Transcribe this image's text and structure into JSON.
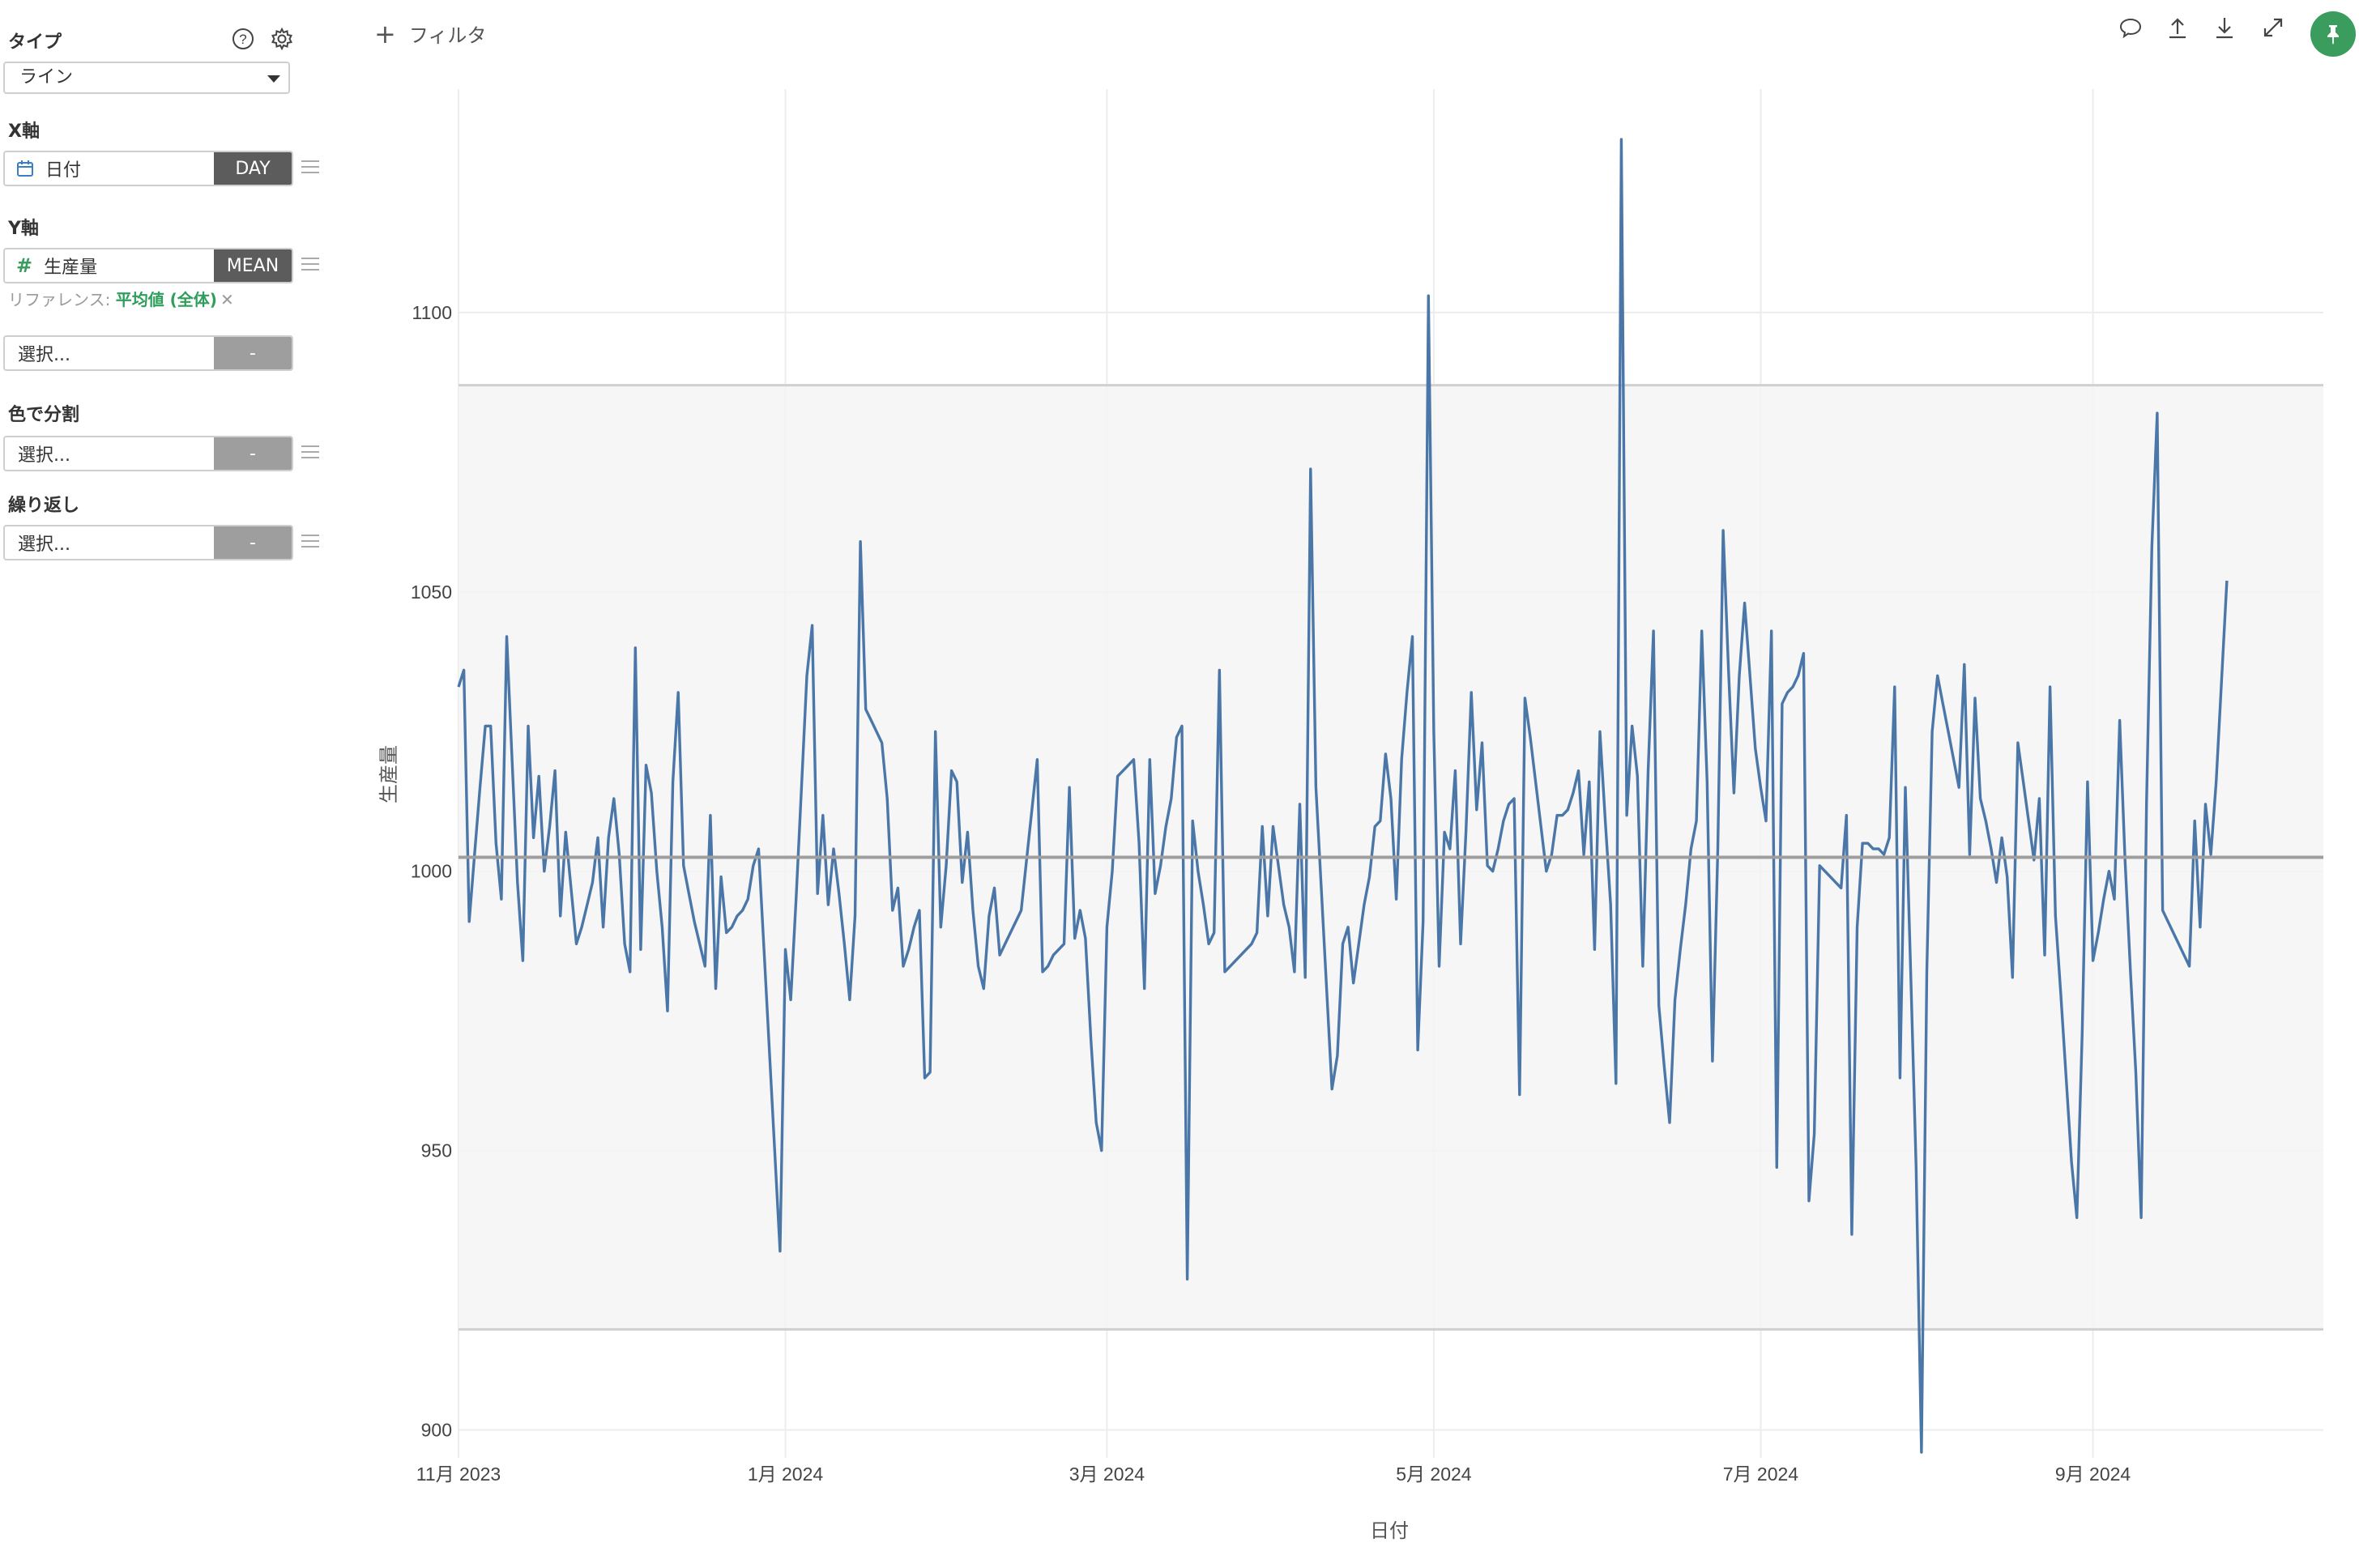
{
  "sidebar": {
    "type_label": "タイプ",
    "type_value": "ライン",
    "x_label": "X軸",
    "x_field": "日付",
    "x_agg": "DAY",
    "y_label": "Y軸",
    "y_field": "生産量",
    "y_agg": "MEAN",
    "ref_prefix": "リファレンス: ",
    "ref_value": "平均値 (全体)",
    "ref_remove": "✕",
    "extra_select": "選択...",
    "extra_agg": "-",
    "color_label": "色で分割",
    "color_select": "選択...",
    "color_agg": "-",
    "repeat_label": "繰り返し",
    "repeat_select": "選択...",
    "repeat_agg": "-"
  },
  "topbar": {
    "filter_plus": "+",
    "filter_label": "フィルタ",
    "icons": [
      "comment-icon",
      "upload-icon",
      "download-icon",
      "expand-icon",
      "pin-icon"
    ]
  },
  "colors": {
    "line": "#4a76a8",
    "band": "#f4f4f4",
    "band_border": "#d0d0d0",
    "mean_line": "#9e9e9e",
    "accent": "#3a9d5d",
    "agg_dark": "#5c5c5c",
    "agg_empty": "#9e9e9e"
  },
  "chart_data": {
    "type": "line",
    "xlabel": "日付",
    "ylabel": "生産量",
    "x_range": [
      "2023-11-01",
      "2024-10-14"
    ],
    "ylim": [
      895,
      1140
    ],
    "yticks": [
      900,
      950,
      1000,
      1050,
      1100
    ],
    "xticks": [
      {
        "date": "2023-11-01",
        "label": "11月 2023"
      },
      {
        "date": "2024-01-01",
        "label": "1月 2024"
      },
      {
        "date": "2024-03-01",
        "label": "3月 2024"
      },
      {
        "date": "2024-05-01",
        "label": "5月 2024"
      },
      {
        "date": "2024-07-01",
        "label": "7月 2024"
      },
      {
        "date": "2024-09-01",
        "label": "9月 2024"
      }
    ],
    "grid": true,
    "reference": {
      "label": "平均値 (全体)",
      "mean": 1002.5,
      "band": [
        918,
        1087
      ]
    },
    "series": [
      {
        "name": "生産量",
        "start_date": "2023-11-01",
        "values": [
          1033,
          1036,
          991,
          1003,
          1015,
          1026,
          1026,
          1005,
          995,
          1042,
          1020,
          998,
          984,
          1026,
          1006,
          1017,
          1000,
          1008,
          1018,
          992,
          1007,
          997,
          987,
          990,
          994,
          998,
          1006,
          990,
          1006,
          1013,
          1003,
          987,
          982,
          1040,
          986,
          1019,
          1014,
          1000,
          990,
          975,
          1016,
          1032,
          1001,
          996,
          991,
          987,
          983,
          1010,
          979,
          999,
          989,
          990,
          992,
          993,
          995,
          1001,
          1004,
          986,
          968,
          950,
          932,
          986,
          977,
          995,
          1015,
          1035,
          1044,
          996,
          1010,
          994,
          1004,
          996,
          987,
          977,
          992,
          1059,
          1029,
          1027,
          1025,
          1023,
          1013,
          993,
          997,
          983,
          986,
          990,
          993,
          963,
          964,
          1025,
          990,
          1001,
          1018,
          1016,
          998,
          1007,
          993,
          983,
          979,
          992,
          997,
          985,
          987,
          989,
          991,
          993,
          1002,
          1011,
          1020,
          982,
          983,
          985,
          986,
          987,
          1015,
          988,
          993,
          988,
          970,
          955,
          950,
          990,
          1000,
          1017,
          1018,
          1019,
          1020,
          1005,
          979,
          1020,
          996,
          1001,
          1008,
          1013,
          1024,
          1026,
          927,
          1009,
          1000,
          994,
          987,
          989,
          1036,
          982,
          983,
          984,
          985,
          986,
          987,
          989,
          1008,
          992,
          1008,
          1001,
          994,
          990,
          982,
          1012,
          981,
          1072,
          1015,
          997,
          979,
          961,
          967,
          987,
          990,
          980,
          987,
          994,
          999,
          1008,
          1009,
          1021,
          1013,
          995,
          1020,
          1032,
          1042,
          968,
          991,
          1103,
          1025,
          983,
          1007,
          1004,
          1018,
          987,
          1007,
          1032,
          1011,
          1023,
          1001,
          1000,
          1004,
          1009,
          1012,
          1013,
          960,
          1031,
          1024,
          1016,
          1008,
          1000,
          1003,
          1010,
          1010,
          1011,
          1014,
          1018,
          1003,
          1016,
          986,
          1025,
          1009,
          994,
          962,
          1131,
          1010,
          1026,
          1017,
          983,
          1018,
          1043,
          976,
          965,
          955,
          977,
          986,
          994,
          1004,
          1009,
          1043,
          1016,
          966,
          1004,
          1061,
          1036,
          1014,
          1035,
          1048,
          1035,
          1022,
          1015,
          1009,
          1043,
          947,
          1030,
          1032,
          1033,
          1035,
          1039,
          941,
          953,
          1001,
          1000,
          999,
          998,
          997,
          1010,
          935,
          990,
          1005,
          1005,
          1004,
          1004,
          1003,
          1006,
          1033,
          963,
          1015,
          982,
          947,
          896,
          982,
          1025,
          1035,
          1030,
          1025,
          1020,
          1015,
          1037,
          1003,
          1031,
          1013,
          1009,
          1004,
          998,
          1006,
          999,
          981,
          1023,
          1016,
          1009,
          1002,
          1013,
          985,
          1033,
          992,
          978,
          963,
          948,
          938,
          971,
          1016,
          984,
          989,
          995,
          1000,
          995,
          1027,
          1002,
          982,
          964,
          938,
          1012,
          1058,
          1082,
          993,
          991,
          989,
          987,
          985,
          983,
          1009,
          990,
          1012,
          1003,
          1016,
          1034,
          1052
        ]
      }
    ]
  }
}
